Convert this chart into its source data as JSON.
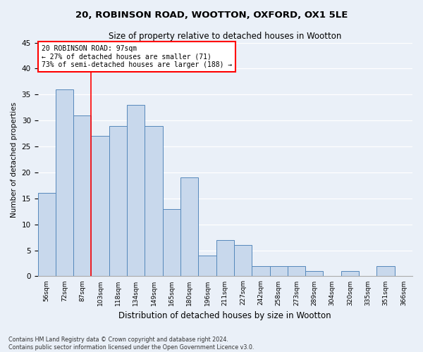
{
  "title1": "20, ROBINSON ROAD, WOOTTON, OXFORD, OX1 5LE",
  "title2": "Size of property relative to detached houses in Wootton",
  "xlabel": "Distribution of detached houses by size in Wootton",
  "ylabel": "Number of detached properties",
  "categories": [
    "56sqm",
    "72sqm",
    "87sqm",
    "103sqm",
    "118sqm",
    "134sqm",
    "149sqm",
    "165sqm",
    "180sqm",
    "196sqm",
    "211sqm",
    "227sqm",
    "242sqm",
    "258sqm",
    "273sqm",
    "289sqm",
    "304sqm",
    "320sqm",
    "335sqm",
    "351sqm",
    "366sqm"
  ],
  "values": [
    16,
    36,
    31,
    27,
    29,
    33,
    29,
    13,
    19,
    4,
    7,
    6,
    2,
    2,
    2,
    1,
    0,
    1,
    0,
    2,
    0
  ],
  "bar_color": "#c8d8ec",
  "bar_edge_color": "#5588bb",
  "annotation_text_line1": "20 ROBINSON ROAD: 97sqm",
  "annotation_text_line2": "← 27% of detached houses are smaller (71)",
  "annotation_text_line3": "73% of semi-detached houses are larger (188) →",
  "ylim": [
    0,
    45
  ],
  "yticks": [
    0,
    5,
    10,
    15,
    20,
    25,
    30,
    35,
    40,
    45
  ],
  "footnote1": "Contains HM Land Registry data © Crown copyright and database right 2024.",
  "footnote2": "Contains public sector information licensed under the Open Government Licence v3.0.",
  "bg_color": "#eaf0f8",
  "plot_bg_color": "#eaf0f8",
  "grid_color": "#ffffff",
  "red_line_x": 2.5
}
